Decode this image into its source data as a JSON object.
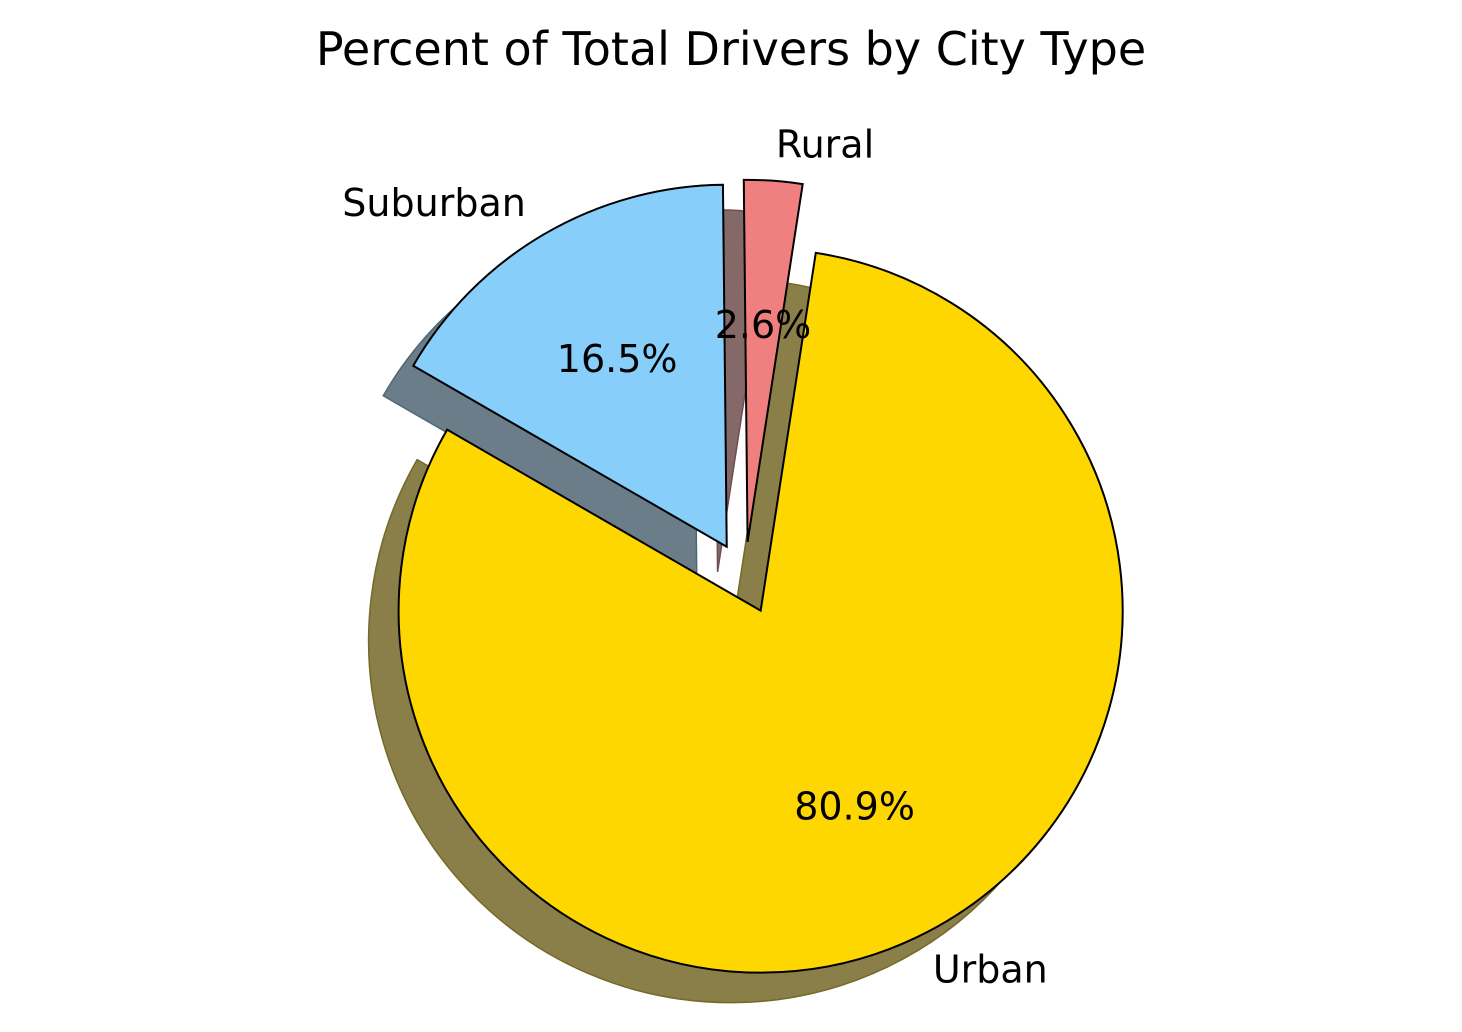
{
  "chart_data": {
    "type": "pie",
    "title": "Percent of Total Drivers by City Type",
    "slices": [
      {
        "label": "Urban",
        "percent_label": "80.9%",
        "value": 80.9,
        "color": "#ffd700",
        "explode": 0.1
      },
      {
        "label": "Rural",
        "percent_label": "2.6%",
        "value": 2.6,
        "color": "#f08080",
        "explode": 0.1
      },
      {
        "label": "Suburban",
        "percent_label": "16.5%",
        "value": 16.5,
        "color": "#87cefa",
        "explode": 0.1
      }
    ],
    "start_angle_deg": 150,
    "shadow": true,
    "edge_color": "#000000",
    "legend": "none"
  }
}
